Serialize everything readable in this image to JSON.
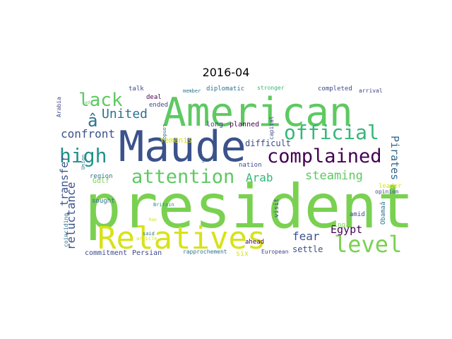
{
  "title": "2016-04",
  "words": [
    {
      "text": "president",
      "color": "#7ad151"
    },
    {
      "text": "American",
      "color": "#5ec962"
    },
    {
      "text": "Maude",
      "color": "#3b528b"
    },
    {
      "text": "Relatives",
      "color": "#d8e219"
    },
    {
      "text": "official",
      "color": "#35b779"
    },
    {
      "text": "complained",
      "color": "#440154"
    },
    {
      "text": "attention",
      "color": "#5ec962"
    },
    {
      "text": "level",
      "color": "#7ad151"
    },
    {
      "text": "high",
      "color": "#21918c"
    },
    {
      "text": "lack",
      "color": "#5ec962"
    },
    {
      "text": "â",
      "color": "#2c728e"
    },
    {
      "text": "United",
      "color": "#2c728e"
    },
    {
      "text": "confront",
      "color": "#3b528b"
    },
    {
      "text": "steaming",
      "color": "#5ec962"
    },
    {
      "text": "Arab",
      "color": "#35b779"
    },
    {
      "text": "reluctance",
      "color": "#3b528b"
    },
    {
      "text": "transfer",
      "color": "#3b528b"
    },
    {
      "text": "Pirates",
      "color": "#31688e"
    },
    {
      "text": "fear",
      "color": "#3b528b"
    },
    {
      "text": "Egypt",
      "color": "#440154"
    },
    {
      "text": "difficult",
      "color": "#3e4989"
    },
    {
      "text": "Yemenis",
      "color": "#d8e219"
    },
    {
      "text": "settle",
      "color": "#3b528b"
    },
    {
      "text": "six",
      "color": "#d8e219"
    },
    {
      "text": "Persian",
      "color": "#3e4989"
    },
    {
      "text": "commitment",
      "color": "#3e4989"
    },
    {
      "text": "Gulf",
      "color": "#7ad151"
    },
    {
      "text": "sought",
      "color": "#2c728e"
    },
    {
      "text": "region",
      "color": "#2c728e"
    },
    {
      "text": "talk",
      "color": "#3e4989"
    },
    {
      "text": "deal",
      "color": "#440154"
    },
    {
      "text": "ended",
      "color": "#3e4989"
    },
    {
      "text": "diplomatic",
      "color": "#2c728e"
    },
    {
      "text": "member",
      "color": "#2c728e"
    },
    {
      "text": "stronger",
      "color": "#35b779"
    },
    {
      "text": "completed",
      "color": "#3e4989"
    },
    {
      "text": "arrival",
      "color": "#3e4989"
    },
    {
      "text": "long",
      "color": "#3e4989"
    },
    {
      "text": "planned",
      "color": "#440154"
    },
    {
      "text": "nation",
      "color": "#3e4989"
    },
    {
      "text": "capital",
      "color": "#3e4989"
    },
    {
      "text": "leader",
      "color": "#d8e219"
    },
    {
      "text": "opinion",
      "color": "#3e4989"
    },
    {
      "text": "amid",
      "color": "#3e4989"
    },
    {
      "text": "meeting",
      "color": "#7ad151"
    },
    {
      "text": "ahead",
      "color": "#440154"
    },
    {
      "text": "visit",
      "color": "#3e4989"
    },
    {
      "text": "Obamaâ",
      "color": "#2c728e"
    },
    {
      "text": "European",
      "color": "#3e4989"
    },
    {
      "text": "rapprochement",
      "color": "#2c728e"
    },
    {
      "text": "Arabia",
      "color": "#3e4989"
    },
    {
      "text": "Union",
      "color": "#2c728e"
    },
    {
      "text": "coinciding",
      "color": "#2c728e"
    },
    {
      "text": "article",
      "color": "#d8e219"
    },
    {
      "text": "said",
      "color": "#2c728e"
    },
    {
      "text": "Ran",
      "color": "#d8e219"
    },
    {
      "text": "Britain",
      "color": "#21918c"
    },
    {
      "text": "London",
      "color": "#2c728e"
    },
    {
      "text": "s",
      "color": "#2c728e"
    },
    {
      "text": "ad",
      "color": "#5ec962"
    }
  ]
}
